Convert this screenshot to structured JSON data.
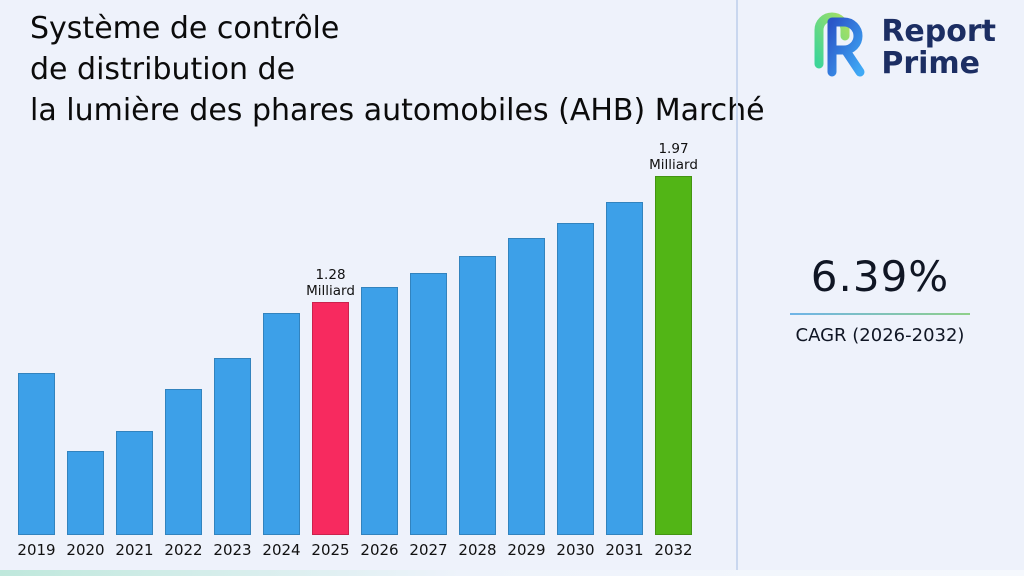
{
  "title": {
    "lines": [
      "Système de contrôle",
      "de distribution de",
      "la lumière des phares automobiles (AHB) Marché"
    ]
  },
  "logo": {
    "line1": "Report",
    "line2": "Prime",
    "colors": {
      "text": "#1c2e63",
      "blue": "#2b55c8",
      "light_blue": "#3fa9f5",
      "green": "#3ed598"
    }
  },
  "stats": {
    "cagr_value": "6.39%",
    "cagr_label": "CAGR (2026-2032)"
  },
  "chart_data": {
    "type": "bar",
    "title": "Système de contrôle de distribution de la lumière des phares automobiles (AHB) Marché",
    "unit": "Milliard",
    "categories": [
      "2019",
      "2020",
      "2021",
      "2022",
      "2023",
      "2024",
      "2025",
      "2026",
      "2027",
      "2028",
      "2029",
      "2030",
      "2031",
      "2032"
    ],
    "values": [
      0.89,
      0.46,
      0.57,
      0.8,
      0.97,
      1.22,
      1.28,
      1.36,
      1.44,
      1.53,
      1.63,
      1.71,
      1.83,
      1.97
    ],
    "data_labels": {
      "2025": "1.28 Milliard",
      "2032": "1.97 Milliard"
    },
    "default_color": "#3da0e8",
    "color_overrides": {
      "2025": "#f72a5f",
      "2032": "#52b516"
    },
    "ylim": [
      0,
      2.1
    ],
    "grid": false,
    "legend": "none"
  }
}
